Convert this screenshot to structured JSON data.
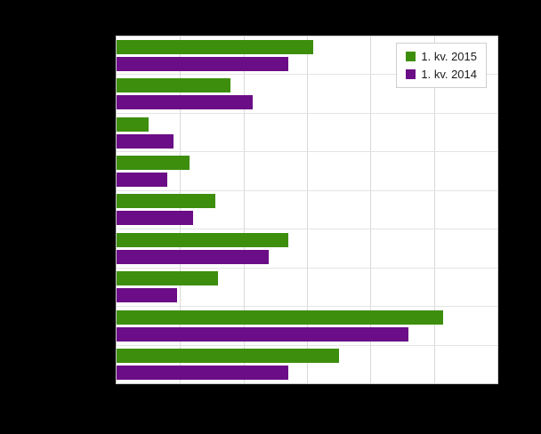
{
  "chart_data": {
    "type": "bar",
    "orientation": "horizontal",
    "title": "",
    "categories": [
      "",
      "",
      "",
      "",
      "",
      "",
      "",
      "",
      ""
    ],
    "series": [
      {
        "name": "1. kv. 2015",
        "color": "#3d8e0d",
        "values": [
          31,
          18,
          5,
          11.5,
          15.5,
          27,
          16,
          51.5,
          35
        ]
      },
      {
        "name": "1. kv. 2014",
        "color": "#6b0d86",
        "values": [
          27,
          21.5,
          9,
          8,
          12,
          24,
          9.5,
          46,
          27
        ]
      }
    ],
    "xlim": [
      0,
      60
    ],
    "grid_step": 10,
    "grid": true,
    "legend_position": "top-right",
    "background": "#000000",
    "plot_background": "#ffffff",
    "gridline_color": "#d9d9d9"
  },
  "legend": {
    "items": [
      {
        "label": "1. kv. 2015",
        "color": "#3d8e0d"
      },
      {
        "label": "1. kv. 2014",
        "color": "#6b0d86"
      }
    ]
  }
}
